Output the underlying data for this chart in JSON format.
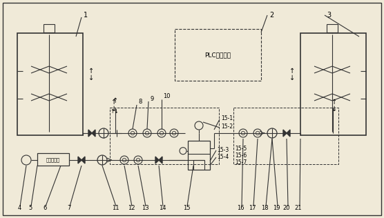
{
  "bg_color": "#f0ead8",
  "line_color": "#333333",
  "plc_label": "PLC控制系统",
  "air_label": "空气压缩机",
  "fig_w": 5.56,
  "fig_h": 3.16,
  "dpi": 100
}
